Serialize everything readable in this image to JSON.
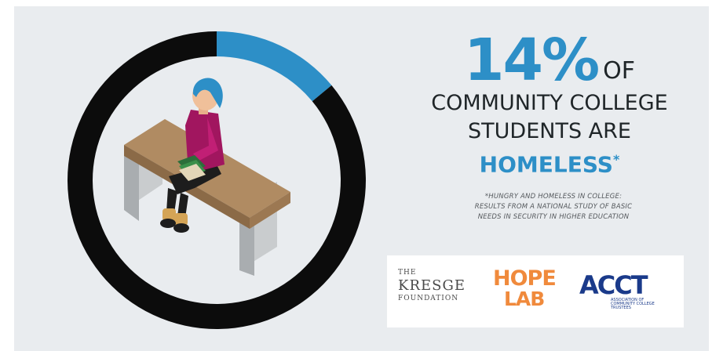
{
  "chart_data": {
    "type": "pie",
    "categories": [
      "Homeless",
      "Not homeless"
    ],
    "values": [
      14,
      86
    ]
  },
  "colors": {
    "accent": "#2d8fc7",
    "ring_dark": "#0c0c0c",
    "background": "#e9ecef",
    "hope_lab": "#f08a3c",
    "acct": "#1a3a8a"
  },
  "headline": {
    "stat": "14%",
    "of": "OF",
    "line1": "COMMUNITY COLLEGE",
    "line2": "STUDENTS ARE",
    "highlight": "HOMELESS",
    "footnote_mark": "*"
  },
  "source": {
    "line1": "*HUNGRY AND HOMELESS IN COLLEGE:",
    "line2": "RESULTS FROM A NATIONAL STUDY OF BASIC",
    "line3": "NEEDS IN SECURITY IN HIGHER EDUCATION"
  },
  "logos": {
    "kresge_the": "THE",
    "kresge_name": "KRESGE",
    "kresge_foundation": "FOUNDATION",
    "hope_1": "HOPE",
    "hope_2": "LAB",
    "acct_name": "ACCT",
    "acct_tagline": "ASSOCIATION OF COMMUNITY COLLEGE TRUSTEES"
  }
}
